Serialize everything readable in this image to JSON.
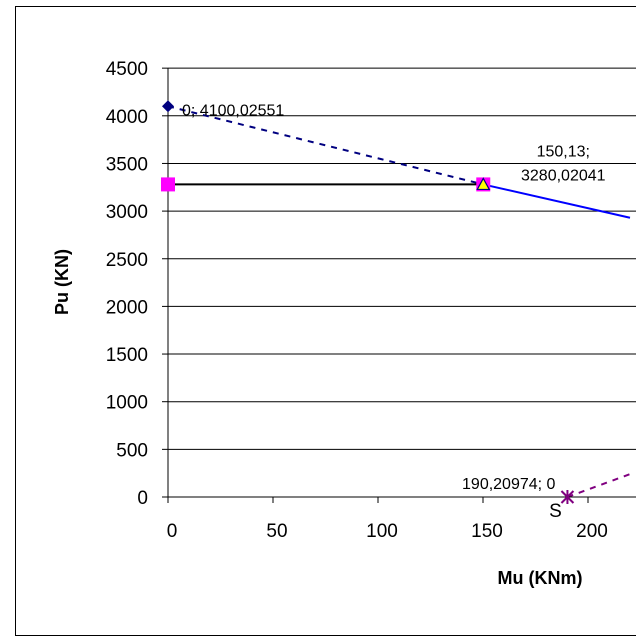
{
  "chart_data": {
    "type": "line",
    "xlabel": "Mu (KNm)",
    "ylabel": "Pu (KN)",
    "xlim": [
      0,
      220
    ],
    "ylim": [
      0,
      4500
    ],
    "x_ticks": [
      "0",
      "50",
      "100",
      "150",
      "200"
    ],
    "y_ticks": [
      "0",
      "500",
      "1000",
      "1500",
      "2000",
      "2500",
      "3000",
      "3500",
      "4000",
      "4500"
    ],
    "x_tick_values": [
      0,
      50,
      100,
      150,
      200
    ],
    "y_tick_values": [
      0,
      500,
      1000,
      1500,
      2000,
      2500,
      3000,
      3500,
      4000,
      4500
    ],
    "grid": "horizontal",
    "series": [
      {
        "values": [
          [
            0,
            4100.02551
          ],
          [
            150.13,
            3280.02041
          ]
        ],
        "color": "#000080",
        "style": "dashed"
      },
      {
        "values": [
          [
            150.13,
            3280.02041
          ],
          [
            220,
            2930
          ]
        ],
        "color": "#0000ff",
        "style": "solid"
      },
      {
        "values": [
          [
            0,
            3280.02041
          ],
          [
            150.13,
            3280.02041
          ]
        ],
        "color": "#000000",
        "style": "solid"
      },
      {
        "values": [
          [
            190.20974,
            0
          ],
          [
            220,
            240
          ]
        ],
        "color": "#800080",
        "style": "dashed"
      }
    ],
    "points": [
      {
        "x": 0,
        "y": 4100.02551,
        "marker": "diamond",
        "color": "#000080"
      },
      {
        "x": 0,
        "y": 3280.02041,
        "marker": "square",
        "color": "#ff00ff"
      },
      {
        "x": 150.13,
        "y": 3280.02041,
        "marker": "square",
        "color": "#ff00ff"
      },
      {
        "x": 150.13,
        "y": 3280.02041,
        "marker": "triangle",
        "color": "#ffff00"
      },
      {
        "x": 190.20974,
        "y": 0,
        "marker": "star",
        "color": "#800080"
      }
    ],
    "annotations": [
      {
        "lines": [
          "0; 4100,02551"
        ],
        "x": 0,
        "y": 4100.02551
      },
      {
        "lines": [
          "150,13;",
          "3280,02041"
        ],
        "x": 150.13,
        "y": 3280.02041
      },
      {
        "lines": [
          "190,20974; 0"
        ],
        "x": 190.20974,
        "y": 0
      },
      {
        "lines": [
          "S"
        ],
        "x": 190.20974,
        "y": 0
      }
    ]
  }
}
